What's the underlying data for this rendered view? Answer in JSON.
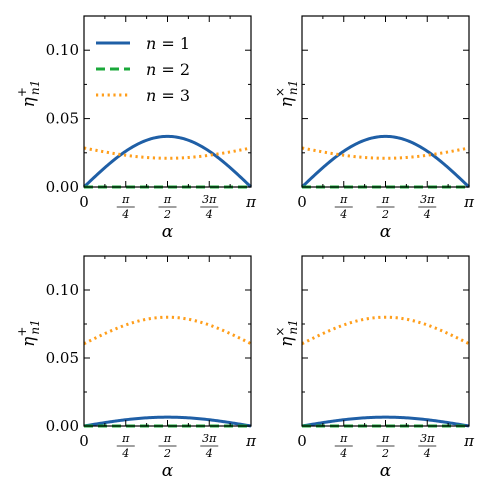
{
  "chart_data": [
    {
      "type": "line",
      "panel": "top-left",
      "xlabel": "α",
      "ylabel": "η⁺ₙ₁",
      "ylabel_main": "η",
      "ylabel_sup": "+",
      "ylabel_sub": "n1",
      "xlim": [
        0,
        3.14159
      ],
      "ylim": [
        0,
        0.125
      ],
      "yticks": [
        0.0,
        0.05,
        0.1
      ],
      "ytick_labels": [
        "0.00",
        "0.05",
        "0.10"
      ],
      "xtick_labels": [
        "0",
        "π/4",
        "π/2",
        "3π/4",
        "π"
      ],
      "legend": "top-left",
      "series": [
        {
          "name": "n = 1",
          "color": "#1f5fa6",
          "style": "solid",
          "amp": 0.037,
          "base": 0.0
        },
        {
          "name": "n = 2",
          "color": "#1aa83a",
          "style": "dashed",
          "amp": 0.0,
          "base": 0.0
        },
        {
          "name": "n = 3",
          "color": "#ff9e1b",
          "style": "dotted",
          "amp": -0.0075,
          "base": 0.0285
        }
      ]
    },
    {
      "type": "line",
      "panel": "top-right",
      "xlabel": "α",
      "ylabel": "η×ₙ₁",
      "ylabel_main": "η",
      "ylabel_sup": "×",
      "ylabel_sub": "n1",
      "xlim": [
        0,
        3.14159
      ],
      "ylim": [
        0,
        0.125
      ],
      "xtick_labels": [
        "0",
        "π/4",
        "π/2",
        "3π/4",
        "π"
      ],
      "series": [
        {
          "name": "n = 1",
          "color": "#1f5fa6",
          "style": "solid",
          "amp": 0.037,
          "base": 0.0
        },
        {
          "name": "n = 2",
          "color": "#1aa83a",
          "style": "dashed",
          "amp": 0.0,
          "base": 0.0
        },
        {
          "name": "n = 3",
          "color": "#ff9e1b",
          "style": "dotted",
          "amp": -0.0075,
          "base": 0.0285
        }
      ]
    },
    {
      "type": "line",
      "panel": "bottom-left",
      "xlabel": "α",
      "ylabel": "η⁺ₙ₁",
      "ylabel_main": "η",
      "ylabel_sup": "+",
      "ylabel_sub": "n1",
      "xlim": [
        0,
        3.14159
      ],
      "ylim": [
        0,
        0.125
      ],
      "yticks": [
        0.0,
        0.05,
        0.1
      ],
      "ytick_labels": [
        "0.00",
        "0.05",
        "0.10"
      ],
      "xtick_labels": [
        "0",
        "π/4",
        "π/2",
        "3π/4",
        "π"
      ],
      "series": [
        {
          "name": "n = 1",
          "color": "#1f5fa6",
          "style": "solid",
          "amp": 0.0065,
          "base": 0.0
        },
        {
          "name": "n = 2",
          "color": "#1aa83a",
          "style": "dashed",
          "amp": 0.0,
          "base": 0.0
        },
        {
          "name": "n = 3",
          "color": "#ff9e1b",
          "style": "dotted",
          "amp": 0.0195,
          "base": 0.0605
        }
      ]
    },
    {
      "type": "line",
      "panel": "bottom-right",
      "xlabel": "α",
      "ylabel": "η×ₙ₁",
      "ylabel_main": "η",
      "ylabel_sup": "×",
      "ylabel_sub": "n1",
      "xlim": [
        0,
        3.14159
      ],
      "ylim": [
        0,
        0.125
      ],
      "xtick_labels": [
        "0",
        "π/4",
        "π/2",
        "3π/4",
        "π"
      ],
      "series": [
        {
          "name": "n = 1",
          "color": "#1f5fa6",
          "style": "solid",
          "amp": 0.0065,
          "base": 0.0
        },
        {
          "name": "n = 2",
          "color": "#1aa83a",
          "style": "dashed",
          "amp": 0.0,
          "base": 0.0
        },
        {
          "name": "n = 3",
          "color": "#ff9e1b",
          "style": "dotted",
          "amp": 0.0195,
          "base": 0.0605
        }
      ]
    }
  ],
  "legend": {
    "entries": [
      {
        "var": "n",
        "eq": " = 1"
      },
      {
        "var": "n",
        "eq": " = 2"
      },
      {
        "var": "n",
        "eq": " = 3"
      }
    ]
  }
}
